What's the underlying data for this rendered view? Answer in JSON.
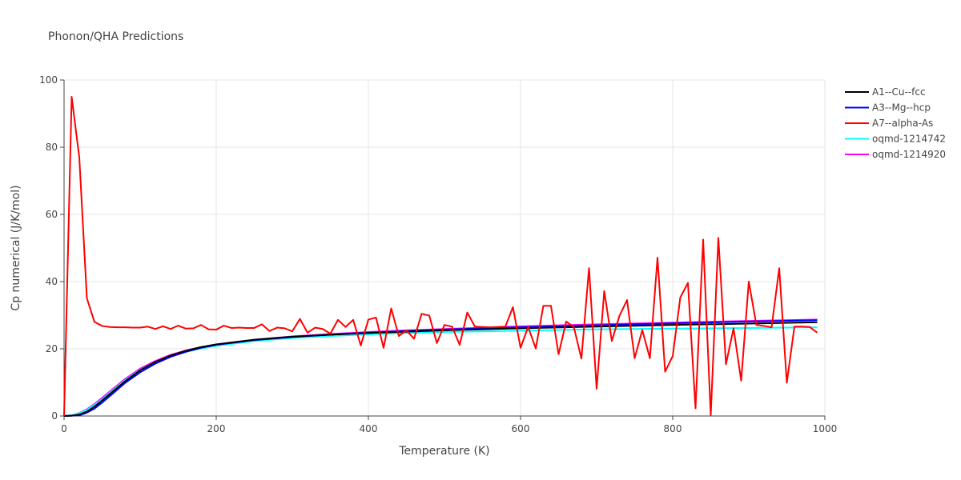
{
  "chart_data": {
    "type": "line",
    "title": "Phonon/QHA Predictions",
    "xlabel": "Temperature (K)",
    "ylabel": "Cp numerical (J/K/mol)",
    "xlim": [
      0,
      1000
    ],
    "ylim": [
      0,
      100
    ],
    "xticks": [
      0,
      200,
      400,
      600,
      800,
      1000
    ],
    "yticks": [
      0,
      20,
      40,
      60,
      80,
      100
    ],
    "grid": true,
    "legend_position": "top-right",
    "series": [
      {
        "name": "A1--Cu--fcc",
        "color": "#000000",
        "x": [
          0,
          10,
          20,
          30,
          40,
          50,
          60,
          80,
          100,
          120,
          140,
          160,
          180,
          200,
          250,
          300,
          350,
          400,
          450,
          500,
          600,
          700,
          800,
          900,
          990
        ],
        "y": [
          0,
          0.1,
          0.4,
          1.3,
          2.8,
          4.6,
          6.5,
          10.3,
          13.6,
          16.1,
          18.0,
          19.4,
          20.5,
          21.3,
          22.7,
          23.6,
          24.2,
          24.7,
          25.1,
          25.5,
          26.1,
          26.6,
          27.1,
          27.5,
          27.9
        ]
      },
      {
        "name": "A3--Mg--hcp",
        "color": "#0000ff",
        "x": [
          0,
          10,
          20,
          30,
          40,
          50,
          60,
          80,
          100,
          120,
          140,
          160,
          180,
          200,
          250,
          300,
          350,
          400,
          450,
          500,
          600,
          700,
          800,
          900,
          990
        ],
        "y": [
          0,
          0.1,
          0.2,
          1.0,
          2.2,
          4.0,
          5.9,
          9.8,
          13.0,
          15.6,
          17.6,
          19.1,
          20.3,
          21.2,
          22.6,
          23.5,
          24.2,
          24.8,
          25.3,
          25.7,
          26.4,
          27.0,
          27.6,
          28.1,
          28.5
        ]
      },
      {
        "name": "A7--alpha-As",
        "color": "#ff0000",
        "x": [
          0,
          10,
          20,
          30,
          40,
          50,
          60,
          70,
          80,
          90,
          100,
          110,
          120,
          130,
          140,
          150,
          160,
          170,
          180,
          190,
          200,
          210,
          220,
          230,
          240,
          250,
          260,
          270,
          280,
          290,
          300,
          310,
          320,
          330,
          340,
          350,
          360,
          370,
          380,
          390,
          400,
          410,
          420,
          430,
          440,
          450,
          460,
          470,
          480,
          490,
          500,
          510,
          520,
          530,
          540,
          550,
          560,
          570,
          580,
          590,
          600,
          610,
          620,
          630,
          640,
          650,
          660,
          670,
          680,
          690,
          700,
          710,
          720,
          730,
          740,
          750,
          760,
          770,
          780,
          790,
          800,
          810,
          820,
          830,
          840,
          850,
          860,
          870,
          880,
          890,
          900,
          910,
          920,
          930,
          940,
          950,
          960,
          970,
          980,
          990
        ],
        "y": [
          0,
          95,
          77,
          35,
          28,
          26.8,
          26.5,
          26.4,
          26.4,
          26.3,
          26.3,
          26.6,
          25.9,
          26.7,
          25.9,
          26.9,
          26.0,
          26.1,
          27.1,
          25.8,
          25.7,
          26.9,
          26.2,
          26.3,
          26.2,
          26.2,
          27.3,
          25.3,
          26.3,
          26.1,
          25.2,
          28.9,
          24.8,
          26.3,
          25.9,
          24.5,
          28.6,
          26.5,
          28.6,
          21.0,
          28.7,
          29.3,
          20.3,
          32.0,
          23.8,
          25.5,
          23.0,
          30.4,
          29.9,
          21.7,
          27.1,
          26.6,
          21.2,
          30.8,
          26.6,
          26.5,
          26.4,
          26.5,
          26.6,
          32.4,
          20.3,
          26.5,
          20.1,
          32.8,
          32.8,
          18.4,
          28.1,
          26.5,
          17.1,
          44.0,
          8.1,
          37.2,
          22.3,
          29.8,
          34.5,
          17.2,
          25.6,
          17.2,
          47.1,
          13.2,
          17.8,
          35.3,
          39.6,
          2.3,
          52.5,
          0.2,
          53.0,
          15.4,
          26.1,
          10.5,
          40.0,
          27.1,
          26.8,
          26.4,
          44.0,
          9.9,
          26.6,
          26.6,
          26.5,
          24.8
        ]
      },
      {
        "name": "oqmd-1214742",
        "color": "#00ffff",
        "x": [
          0,
          10,
          20,
          30,
          40,
          50,
          60,
          80,
          100,
          120,
          140,
          160,
          180,
          200,
          250,
          300,
          350,
          400,
          450,
          500,
          600,
          700,
          800,
          900,
          990
        ],
        "y": [
          0,
          0.2,
          0.8,
          1.8,
          3.3,
          5.0,
          6.9,
          10.6,
          13.7,
          16.0,
          17.8,
          19.1,
          20.1,
          20.9,
          22.3,
          23.2,
          23.8,
          24.3,
          24.7,
          25.0,
          25.4,
          25.8,
          26.0,
          26.2,
          26.4
        ]
      },
      {
        "name": "oqmd-1214920",
        "color": "#ff00ff",
        "x": [
          0,
          10,
          20,
          30,
          40,
          50,
          60,
          80,
          100,
          120,
          140,
          160,
          180,
          200,
          250,
          300,
          350,
          400,
          450,
          500,
          600,
          700,
          800,
          900,
          990
        ],
        "y": [
          0,
          0.2,
          0.9,
          2.0,
          3.6,
          5.4,
          7.3,
          11.0,
          14.1,
          16.4,
          18.2,
          19.5,
          20.5,
          21.3,
          22.7,
          23.7,
          24.4,
          25.0,
          25.5,
          25.9,
          26.7,
          27.3,
          27.8,
          28.3,
          28.7
        ]
      }
    ]
  }
}
